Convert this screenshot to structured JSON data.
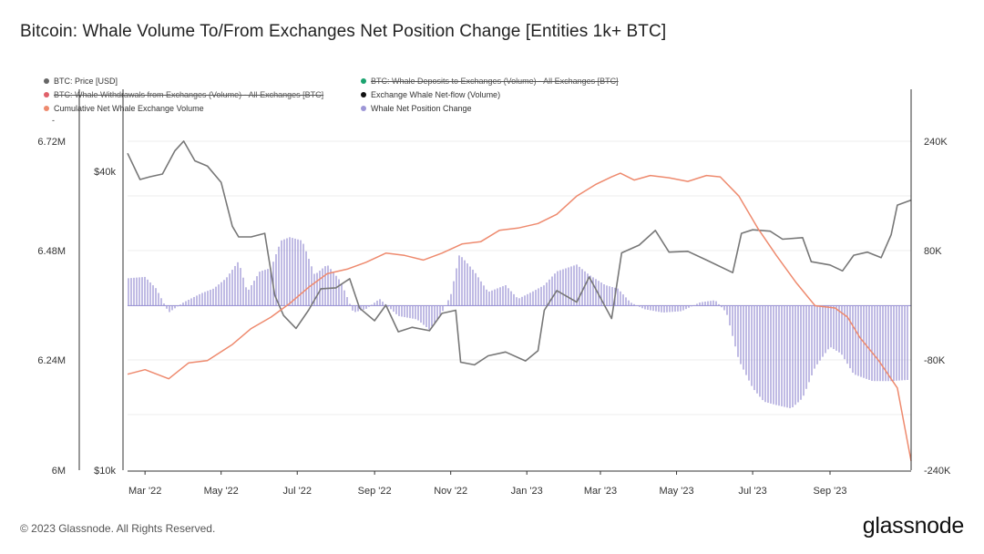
{
  "title": "Bitcoin: Whale Volume To/From Exchanges Net Position Change [Entities 1k+ BTC]",
  "footer": "© 2023 Glassnode. All Rights Reserved.",
  "brand": "glassnode",
  "legend": [
    {
      "label": "BTC: Price [USD]",
      "color": "#666666",
      "off": false
    },
    {
      "label": "BTC: Whale Deposits to Exchanges (Volume) - All Exchanges [BTC]",
      "color": "#1aa36f",
      "off": true
    },
    {
      "label": "BTC: Whale Withdrawals from Exchanges (Volume) - All Exchanges [BTC]",
      "color": "#e0606a",
      "off": true
    },
    {
      "label": "Exchange Whale Net-flow (Volume)",
      "color": "#111111",
      "off": false
    },
    {
      "label": "Cumulative Net Whale Exchange Volume",
      "color": "#ee8a6e",
      "off": false
    },
    {
      "label": "Whale Net Position Change",
      "color": "#9d96d6",
      "off": false
    },
    {
      "label": "-",
      "color": "",
      "off": false
    }
  ],
  "chart_data": {
    "type": "line",
    "x_ticks": [
      "Mar '22",
      "May '22",
      "Jul '22",
      "Sep '22",
      "Nov '22",
      "Jan '23",
      "Mar '23",
      "May '23",
      "Jul '23",
      "Sep '23"
    ],
    "x_dates": [
      "2022-03-01",
      "2022-05-01",
      "2022-07-01",
      "2022-09-01",
      "2022-11-01",
      "2023-01-01",
      "2023-03-01",
      "2023-05-01",
      "2023-07-01",
      "2023-09-01"
    ],
    "x_range": [
      "2022-02-15",
      "2023-11-05"
    ],
    "left_axis_outer": {
      "ticks": [
        "6.72M",
        "6.48M",
        "6.24M",
        "6M"
      ],
      "range": [
        6000000,
        6720000
      ]
    },
    "left_axis_price": {
      "ticks": [
        "$40k",
        "$10k"
      ],
      "range": [
        10000,
        40000
      ],
      "scale": "log"
    },
    "right_axis": {
      "ticks": [
        "240K",
        "80K",
        "-80K",
        "-240K"
      ],
      "range": [
        -240000,
        240000
      ]
    },
    "grid": true,
    "series": [
      {
        "name": "BTC: Price [USD]",
        "axis": "price",
        "color": "#777777",
        "points": [
          [
            "2022-02-15",
            43500
          ],
          [
            "2022-02-25",
            38500
          ],
          [
            "2022-03-05",
            39000
          ],
          [
            "2022-03-15",
            39500
          ],
          [
            "2022-03-25",
            44000
          ],
          [
            "2022-04-01",
            46000
          ],
          [
            "2022-04-10",
            42000
          ],
          [
            "2022-04-20",
            41000
          ],
          [
            "2022-05-01",
            38000
          ],
          [
            "2022-05-10",
            31000
          ],
          [
            "2022-05-15",
            29500
          ],
          [
            "2022-05-25",
            29500
          ],
          [
            "2022-06-05",
            30000
          ],
          [
            "2022-06-13",
            22500
          ],
          [
            "2022-06-20",
            20500
          ],
          [
            "2022-06-30",
            19300
          ],
          [
            "2022-07-10",
            21000
          ],
          [
            "2022-07-20",
            23200
          ],
          [
            "2022-08-01",
            23300
          ],
          [
            "2022-08-12",
            24300
          ],
          [
            "2022-08-20",
            21200
          ],
          [
            "2022-09-01",
            20000
          ],
          [
            "2022-09-10",
            21500
          ],
          [
            "2022-09-20",
            19000
          ],
          [
            "2022-10-01",
            19400
          ],
          [
            "2022-10-15",
            19100
          ],
          [
            "2022-10-25",
            20700
          ],
          [
            "2022-11-05",
            21000
          ],
          [
            "2022-11-09",
            16500
          ],
          [
            "2022-11-20",
            16300
          ],
          [
            "2022-12-01",
            17000
          ],
          [
            "2022-12-15",
            17300
          ],
          [
            "2022-12-31",
            16600
          ],
          [
            "2023-01-10",
            17400
          ],
          [
            "2023-01-15",
            21000
          ],
          [
            "2023-01-25",
            23000
          ],
          [
            "2023-02-10",
            21800
          ],
          [
            "2023-02-20",
            24500
          ],
          [
            "2023-03-10",
            20200
          ],
          [
            "2023-03-18",
            27400
          ],
          [
            "2023-04-01",
            28400
          ],
          [
            "2023-04-14",
            30400
          ],
          [
            "2023-04-25",
            27500
          ],
          [
            "2023-05-10",
            27600
          ],
          [
            "2023-05-25",
            26500
          ],
          [
            "2023-06-15",
            25000
          ],
          [
            "2023-06-22",
            30000
          ],
          [
            "2023-07-01",
            30500
          ],
          [
            "2023-07-15",
            30300
          ],
          [
            "2023-07-25",
            29200
          ],
          [
            "2023-08-10",
            29400
          ],
          [
            "2023-08-17",
            26300
          ],
          [
            "2023-09-01",
            25900
          ],
          [
            "2023-09-11",
            25200
          ],
          [
            "2023-09-20",
            27100
          ],
          [
            "2023-10-01",
            27500
          ],
          [
            "2023-10-12",
            26800
          ],
          [
            "2023-10-20",
            29800
          ],
          [
            "2023-10-25",
            34200
          ],
          [
            "2023-11-05",
            35000
          ]
        ]
      },
      {
        "name": "Cumulative Net Whale Exchange Volume",
        "axis": "outer",
        "color": "#ee8a6e",
        "points": [
          [
            "2022-02-15",
            6210000
          ],
          [
            "2022-03-01",
            6220000
          ],
          [
            "2022-03-20",
            6200000
          ],
          [
            "2022-04-05",
            6235000
          ],
          [
            "2022-04-20",
            6240000
          ],
          [
            "2022-05-10",
            6275000
          ],
          [
            "2022-05-25",
            6310000
          ],
          [
            "2022-06-10",
            6335000
          ],
          [
            "2022-06-25",
            6365000
          ],
          [
            "2022-07-10",
            6400000
          ],
          [
            "2022-07-25",
            6430000
          ],
          [
            "2022-08-10",
            6440000
          ],
          [
            "2022-08-25",
            6455000
          ],
          [
            "2022-09-10",
            6475000
          ],
          [
            "2022-09-25",
            6470000
          ],
          [
            "2022-10-10",
            6460000
          ],
          [
            "2022-10-25",
            6475000
          ],
          [
            "2022-11-10",
            6495000
          ],
          [
            "2022-11-25",
            6500000
          ],
          [
            "2022-12-10",
            6525000
          ],
          [
            "2022-12-25",
            6530000
          ],
          [
            "2023-01-10",
            6540000
          ],
          [
            "2023-01-25",
            6560000
          ],
          [
            "2023-02-10",
            6600000
          ],
          [
            "2023-02-25",
            6625000
          ],
          [
            "2023-03-10",
            6642000
          ],
          [
            "2023-03-17",
            6650000
          ],
          [
            "2023-03-28",
            6635000
          ],
          [
            "2023-04-10",
            6645000
          ],
          [
            "2023-04-25",
            6640000
          ],
          [
            "2023-05-10",
            6632000
          ],
          [
            "2023-05-25",
            6645000
          ],
          [
            "2023-06-05",
            6642000
          ],
          [
            "2023-06-20",
            6600000
          ],
          [
            "2023-07-05",
            6530000
          ],
          [
            "2023-07-20",
            6470000
          ],
          [
            "2023-08-05",
            6410000
          ],
          [
            "2023-08-20",
            6360000
          ],
          [
            "2023-09-05",
            6355000
          ],
          [
            "2023-09-15",
            6335000
          ],
          [
            "2023-09-25",
            6290000
          ],
          [
            "2023-10-10",
            6240000
          ],
          [
            "2023-10-25",
            6180000
          ],
          [
            "2023-11-05",
            6020000
          ]
        ]
      },
      {
        "name": "Whale Net Position Change",
        "axis": "right",
        "color": "#9d96d6",
        "points": [
          [
            "2022-02-15",
            40000
          ],
          [
            "2022-03-01",
            42000
          ],
          [
            "2022-03-10",
            25000
          ],
          [
            "2022-03-20",
            -10000
          ],
          [
            "2022-04-01",
            5000
          ],
          [
            "2022-04-15",
            18000
          ],
          [
            "2022-04-25",
            25000
          ],
          [
            "2022-05-05",
            40000
          ],
          [
            "2022-05-15",
            65000
          ],
          [
            "2022-05-22",
            20000
          ],
          [
            "2022-06-01",
            50000
          ],
          [
            "2022-06-10",
            55000
          ],
          [
            "2022-06-18",
            95000
          ],
          [
            "2022-06-25",
            100000
          ],
          [
            "2022-07-05",
            95000
          ],
          [
            "2022-07-15",
            45000
          ],
          [
            "2022-07-25",
            60000
          ],
          [
            "2022-08-05",
            35000
          ],
          [
            "2022-08-15",
            -10000
          ],
          [
            "2022-08-25",
            -5000
          ],
          [
            "2022-09-05",
            10000
          ],
          [
            "2022-09-20",
            -15000
          ],
          [
            "2022-10-05",
            -20000
          ],
          [
            "2022-10-15",
            -35000
          ],
          [
            "2022-10-25",
            -10000
          ],
          [
            "2022-11-01",
            15000
          ],
          [
            "2022-11-08",
            75000
          ],
          [
            "2022-11-20",
            50000
          ],
          [
            "2022-12-01",
            20000
          ],
          [
            "2022-12-15",
            30000
          ],
          [
            "2022-12-25",
            10000
          ],
          [
            "2023-01-05",
            20000
          ],
          [
            "2023-01-15",
            30000
          ],
          [
            "2023-01-25",
            50000
          ],
          [
            "2023-02-10",
            60000
          ],
          [
            "2023-02-20",
            45000
          ],
          [
            "2023-03-05",
            30000
          ],
          [
            "2023-03-15",
            25000
          ],
          [
            "2023-03-25",
            5000
          ],
          [
            "2023-04-05",
            -5000
          ],
          [
            "2023-04-20",
            -10000
          ],
          [
            "2023-05-05",
            -8000
          ],
          [
            "2023-05-20",
            5000
          ],
          [
            "2023-06-01",
            8000
          ],
          [
            "2023-06-10",
            -10000
          ],
          [
            "2023-06-20",
            -80000
          ],
          [
            "2023-07-01",
            -120000
          ],
          [
            "2023-07-10",
            -140000
          ],
          [
            "2023-07-20",
            -145000
          ],
          [
            "2023-08-01",
            -150000
          ],
          [
            "2023-08-10",
            -135000
          ],
          [
            "2023-08-20",
            -90000
          ],
          [
            "2023-09-01",
            -60000
          ],
          [
            "2023-09-10",
            -70000
          ],
          [
            "2023-09-20",
            -100000
          ],
          [
            "2023-10-05",
            -110000
          ],
          [
            "2023-10-20",
            -110000
          ],
          [
            "2023-11-05",
            -108000
          ]
        ]
      }
    ]
  }
}
